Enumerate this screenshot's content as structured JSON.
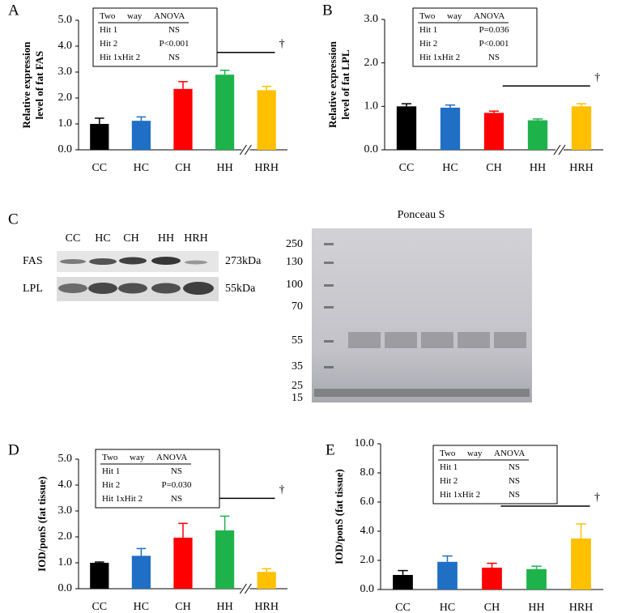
{
  "chart_data": [
    {
      "type": "bar",
      "letter": "A",
      "ylabel": [
        "Relative expression",
        "level of fat FAS"
      ],
      "categories": [
        "CC",
        "HC",
        "CH",
        "HH",
        "HRH"
      ],
      "values": [
        1.0,
        1.12,
        2.35,
        2.9,
        2.3
      ],
      "errors": [
        0.22,
        0.15,
        0.28,
        0.17,
        0.15
      ],
      "colors": [
        "#000000",
        "#1f6fc5",
        "#ff0000",
        "#1db34a",
        "#ffc000"
      ],
      "ylim": [
        0,
        5
      ],
      "yticks": [
        {
          "value": 0,
          "label": "0.0"
        },
        {
          "value": 1,
          "label": "1.0"
        },
        {
          "value": 2,
          "label": "2.0"
        },
        {
          "value": 3,
          "label": "3.0"
        },
        {
          "value": 4,
          "label": "4.0"
        },
        {
          "value": 5,
          "label": "5.0"
        }
      ],
      "anova": {
        "header": [
          "Two",
          "way",
          "ANOVA"
        ],
        "rows": [
          [
            "Hit 1",
            "NS"
          ],
          [
            "Hit 2",
            "P<0.001"
          ],
          [
            "Hit 1xHit 2",
            "NS"
          ]
        ]
      },
      "significance": "†",
      "axis_break": true
    },
    {
      "type": "bar",
      "letter": "B",
      "ylabel": [
        "Relative expression",
        "level of fat LPL"
      ],
      "categories": [
        "CC",
        "HC",
        "CH",
        "HH",
        "HRH"
      ],
      "values": [
        1.0,
        0.97,
        0.85,
        0.68,
        1.0
      ],
      "errors": [
        0.06,
        0.06,
        0.04,
        0.03,
        0.06
      ],
      "colors": [
        "#000000",
        "#1f6fc5",
        "#ff0000",
        "#1db34a",
        "#ffc000"
      ],
      "ylim": [
        0,
        3
      ],
      "yticks": [
        {
          "value": 0,
          "label": "0.0"
        },
        {
          "value": 1,
          "label": "1.0"
        },
        {
          "value": 2,
          "label": "2.0"
        },
        {
          "value": 3,
          "label": "3.0"
        }
      ],
      "anova": {
        "header": [
          "Two",
          "way",
          "ANOVA"
        ],
        "rows": [
          [
            "Hit 1",
            "P=0.036"
          ],
          [
            "Hit 2",
            "P<0.001"
          ],
          [
            "Hit 1xHit 2",
            "NS"
          ]
        ]
      },
      "significance": "†",
      "axis_break": true
    },
    {
      "type": "bar",
      "letter": "D",
      "ylabel": [
        "IOD/ponS (fat tissue)"
      ],
      "categories": [
        "CC",
        "HC",
        "CH",
        "HH",
        "HRH"
      ],
      "values": [
        1.0,
        1.27,
        1.97,
        2.25,
        0.65
      ],
      "errors": [
        0.03,
        0.28,
        0.55,
        0.55,
        0.12
      ],
      "colors": [
        "#000000",
        "#1f6fc5",
        "#ff0000",
        "#1db34a",
        "#ffc000"
      ],
      "ylim": [
        0,
        5
      ],
      "yticks": [
        {
          "value": 0,
          "label": "0.0"
        },
        {
          "value": 1,
          "label": "1.0"
        },
        {
          "value": 2,
          "label": "2.0"
        },
        {
          "value": 3,
          "label": "3.0"
        },
        {
          "value": 4,
          "label": "4.0"
        },
        {
          "value": 5,
          "label": "5.0"
        }
      ],
      "anova": {
        "header": [
          "Two",
          "way",
          "ANOVA"
        ],
        "rows": [
          [
            "Hit 1",
            "NS"
          ],
          [
            "Hit 2",
            "P=0.030"
          ],
          [
            "Hit 1xHit 2",
            "NS"
          ]
        ]
      },
      "significance": "†",
      "axis_break": true
    },
    {
      "type": "bar",
      "letter": "E",
      "ylabel": [
        "IOD/ponS (fat tissue)"
      ],
      "categories": [
        "CC",
        "HC",
        "CH",
        "HH",
        "HRH"
      ],
      "values": [
        1.0,
        1.9,
        1.5,
        1.4,
        3.5
      ],
      "errors": [
        0.3,
        0.4,
        0.3,
        0.2,
        1.0
      ],
      "colors": [
        "#000000",
        "#1f6fc5",
        "#ff0000",
        "#1db34a",
        "#ffc000"
      ],
      "ylim": [
        0,
        10
      ],
      "yticks": [
        {
          "value": 0,
          "label": "0.0"
        },
        {
          "value": 2,
          "label": "2.0"
        },
        {
          "value": 4,
          "label": "4.0"
        },
        {
          "value": 6,
          "label": "6.0"
        },
        {
          "value": 8,
          "label": "8.0"
        },
        {
          "value": 10,
          "label": "10.0"
        }
      ],
      "anova": {
        "header": [
          "Two",
          "way",
          "ANOVA"
        ],
        "rows": [
          [
            "Hit 1",
            "NS"
          ],
          [
            "Hit 2",
            "NS"
          ],
          [
            "Hit 1xHit 2",
            "NS"
          ]
        ]
      },
      "significance": "†",
      "axis_break": false
    }
  ],
  "blot": {
    "letter": "C",
    "lanes": [
      "CC",
      "HC",
      "CH",
      "HH",
      "HRH"
    ],
    "rows": [
      {
        "name": "FAS",
        "size": "273kDa"
      },
      {
        "name": "LPL",
        "size": "55kDa"
      }
    ],
    "gel_title": "Ponceau S",
    "markers": [
      "250",
      "130",
      "100",
      "70",
      "55",
      "35",
      "25",
      "15"
    ]
  }
}
